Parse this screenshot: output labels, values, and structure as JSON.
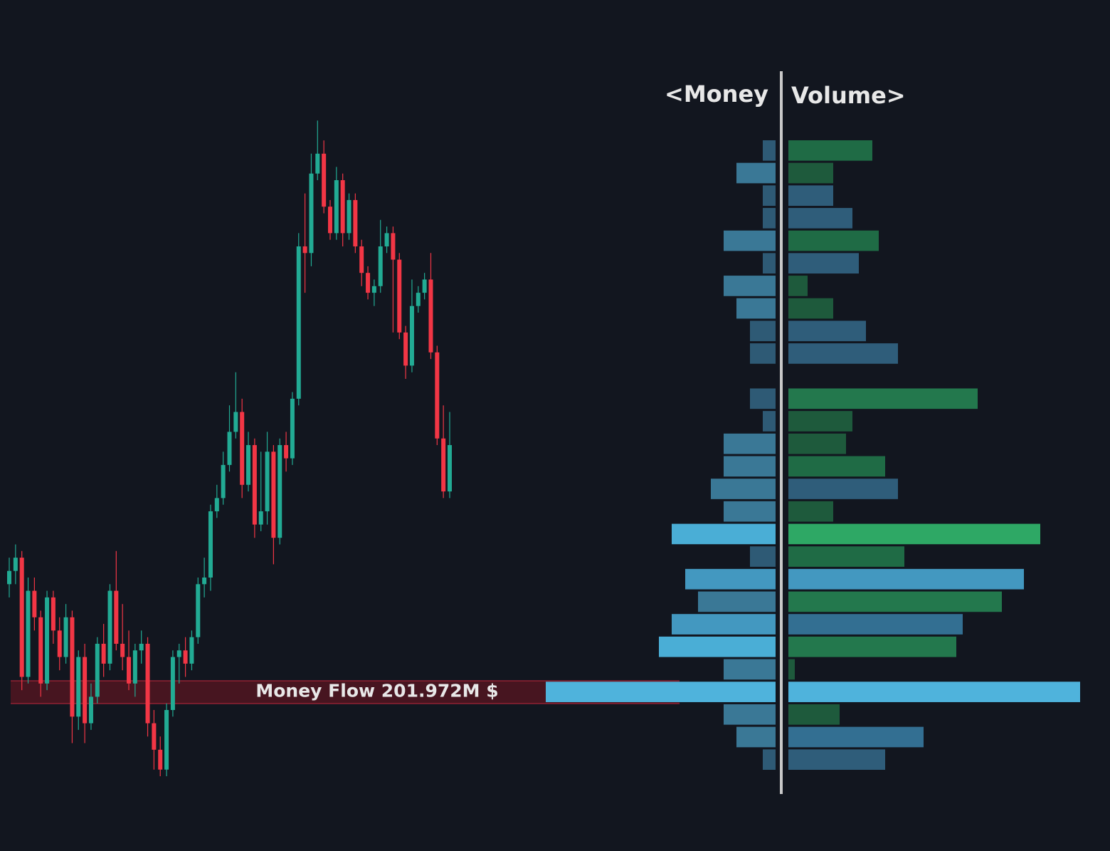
{
  "chart_data": {
    "type": "candlestick-profile",
    "money_header": "<Money",
    "volume_header": "Volume>",
    "poc_label": "Money Flow 201.972M $",
    "ylim": [
      0,
      100
    ],
    "xlim": [
      0,
      420
    ],
    "up_color": "#22ab94",
    "down_color": "#f23645",
    "candles": [
      [
        29,
        33,
        27,
        31
      ],
      [
        31,
        35,
        29,
        33
      ],
      [
        33,
        34,
        13,
        15
      ],
      [
        15,
        30,
        14,
        28
      ],
      [
        28,
        30,
        22,
        24
      ],
      [
        24,
        25,
        12,
        14
      ],
      [
        14,
        28,
        13,
        27
      ],
      [
        27,
        28,
        20,
        22
      ],
      [
        22,
        24,
        16,
        18
      ],
      [
        18,
        26,
        17,
        24
      ],
      [
        24,
        25,
        5,
        9
      ],
      [
        9,
        19,
        7,
        18
      ],
      [
        18,
        20,
        5,
        8
      ],
      [
        8,
        14,
        7,
        12
      ],
      [
        12,
        21,
        11,
        20
      ],
      [
        20,
        23,
        15,
        17
      ],
      [
        17,
        29,
        16,
        28
      ],
      [
        28,
        34,
        19,
        20
      ],
      [
        20,
        26,
        16,
        18
      ],
      [
        18,
        22,
        13,
        14
      ],
      [
        14,
        20,
        12,
        19
      ],
      [
        19,
        22,
        17,
        20
      ],
      [
        20,
        21,
        6,
        8
      ],
      [
        8,
        10,
        1,
        4
      ],
      [
        4,
        6,
        0,
        1
      ],
      [
        1,
        11,
        0,
        10
      ],
      [
        10,
        19,
        9,
        18
      ],
      [
        18,
        20,
        14,
        19
      ],
      [
        19,
        21,
        15,
        17
      ],
      [
        17,
        22,
        16,
        21
      ],
      [
        21,
        30,
        20,
        29
      ],
      [
        29,
        33,
        27,
        30
      ],
      [
        30,
        41,
        28,
        40
      ],
      [
        40,
        44,
        39,
        42
      ],
      [
        42,
        49,
        41,
        47
      ],
      [
        47,
        56,
        46,
        52
      ],
      [
        52,
        61,
        51,
        55
      ],
      [
        55,
        57,
        42,
        44
      ],
      [
        44,
        52,
        43,
        50
      ],
      [
        50,
        51,
        36,
        38
      ],
      [
        38,
        49,
        37,
        40
      ],
      [
        40,
        52,
        38,
        49
      ],
      [
        49,
        50,
        32,
        36
      ],
      [
        36,
        51,
        35,
        50
      ],
      [
        50,
        52,
        46,
        48
      ],
      [
        48,
        58,
        47,
        57
      ],
      [
        57,
        82,
        56,
        80
      ],
      [
        80,
        88,
        73,
        79
      ],
      [
        79,
        94,
        77,
        91
      ],
      [
        91,
        99,
        90,
        94
      ],
      [
        94,
        96,
        85,
        86
      ],
      [
        86,
        87,
        81,
        82
      ],
      [
        82,
        92,
        81,
        90
      ],
      [
        90,
        91,
        80,
        82
      ],
      [
        82,
        88,
        81,
        87
      ],
      [
        87,
        88,
        79,
        80
      ],
      [
        80,
        81,
        74,
        76
      ],
      [
        76,
        77,
        72,
        73
      ],
      [
        73,
        75,
        71,
        74
      ],
      [
        74,
        84,
        73,
        80
      ],
      [
        80,
        83,
        79,
        82
      ],
      [
        82,
        83,
        67,
        78
      ],
      [
        78,
        79,
        66,
        67
      ],
      [
        67,
        68,
        60,
        62
      ],
      [
        62,
        75,
        61,
        71
      ],
      [
        71,
        74,
        70,
        73
      ],
      [
        73,
        76,
        72,
        75
      ],
      [
        75,
        79,
        63,
        64
      ],
      [
        64,
        65,
        50,
        51
      ],
      [
        51,
        56,
        42,
        43
      ],
      [
        43,
        55,
        42,
        50
      ]
    ],
    "money": [
      18,
      55,
      18,
      18,
      73,
      18,
      73,
      55,
      36,
      36,
      null,
      36,
      18,
      73,
      73,
      91,
      73,
      146,
      36,
      127,
      109,
      146,
      164,
      73,
      323,
      73,
      55,
      18
    ],
    "money_colors": [
      "#2e5a75",
      "#3a7896",
      "#2e5a75",
      "#2e5a75",
      "#3a7896",
      "#2e5a75",
      "#3a7896",
      "#3a7896",
      "#2e5a75",
      "#2e5a75",
      null,
      "#2e5a75",
      "#2e5a75",
      "#3a7896",
      "#3a7896",
      "#3a7896",
      "#3a7896",
      "#4aaed6",
      "#2e5a75",
      "#4398c0",
      "#3a7896",
      "#4398c0",
      "#4aaed6",
      "#3a7896",
      "#4fb3dc",
      "#3a7896",
      "#3a7896",
      "#2e5a75"
    ],
    "volume": [
      118,
      63,
      63,
      90,
      127,
      99,
      27,
      63,
      109,
      154,
      null,
      266,
      90,
      81,
      136,
      154,
      63,
      354,
      163,
      331,
      300,
      245,
      236,
      9,
      410,
      72,
      190,
      136
    ],
    "volume_colors": [
      "#1f6b45",
      "#1e5a3c",
      "#2f5d7a",
      "#2f5d7a",
      "#1f6b45",
      "#2f5d7a",
      "#1e5a3c",
      "#1e5a3c",
      "#2f5d7a",
      "#2f5d7a",
      null,
      "#23784d",
      "#1e5a3c",
      "#1e5a3c",
      "#1f6b45",
      "#2f5d7a",
      "#1e5a3c",
      "#2ea865",
      "#1f6b45",
      "#4398c0",
      "#23784d",
      "#336f92",
      "#23784d",
      "#1e5a3c",
      "#4fb3dc",
      "#1e5a3c",
      "#336f92",
      "#2f5d7a"
    ],
    "poc_row": 24
  }
}
